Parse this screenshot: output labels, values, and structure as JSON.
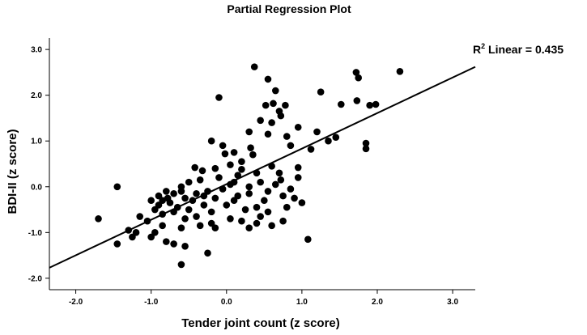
{
  "chart_data": {
    "type": "scatter",
    "title": "Partial Regression Plot",
    "xlabel": "Tender joint count (z score)",
    "ylabel": "BDI-II (z score)",
    "xlim": [
      -2.35,
      3.3
    ],
    "ylim": [
      -2.25,
      3.25
    ],
    "xticks": [
      -2.0,
      -1.0,
      0.0,
      1.0,
      2.0,
      3.0
    ],
    "xtick_labels": [
      "-2.0",
      "-1.0",
      "0.0",
      "1.0",
      "2.0",
      "3.0"
    ],
    "yticks": [
      -2.0,
      -1.0,
      0.0,
      1.0,
      2.0,
      3.0
    ],
    "ytick_labels": [
      "-2.0",
      "-1.0",
      "0.0",
      "1.0",
      "2.0",
      "3.0"
    ],
    "grid": false,
    "fit_line": {
      "label_prefix": "R",
      "label_sup": "2",
      "label_suffix": " Linear = 0.435",
      "x": [
        -2.35,
        3.3
      ],
      "y": [
        -1.77,
        2.62
      ]
    },
    "points": [
      [
        0.37,
        2.62
      ],
      [
        0.55,
        2.35
      ],
      [
        1.72,
        2.5
      ],
      [
        1.75,
        2.38
      ],
      [
        2.3,
        2.52
      ],
      [
        -0.1,
        1.95
      ],
      [
        0.65,
        2.1
      ],
      [
        1.25,
        2.07
      ],
      [
        0.62,
        1.82
      ],
      [
        0.52,
        1.78
      ],
      [
        0.78,
        1.78
      ],
      [
        0.7,
        1.65
      ],
      [
        1.52,
        1.8
      ],
      [
        1.73,
        1.88
      ],
      [
        1.9,
        1.78
      ],
      [
        1.98,
        1.8
      ],
      [
        0.45,
        1.45
      ],
      [
        0.6,
        1.4
      ],
      [
        0.72,
        1.55
      ],
      [
        0.95,
        1.3
      ],
      [
        0.8,
        1.1
      ],
      [
        1.2,
        1.2
      ],
      [
        0.3,
        1.2
      ],
      [
        0.55,
        1.15
      ],
      [
        1.35,
        1.0
      ],
      [
        1.45,
        1.08
      ],
      [
        1.85,
        0.95
      ],
      [
        1.85,
        0.83
      ],
      [
        1.12,
        0.82
      ],
      [
        0.85,
        0.9
      ],
      [
        0.32,
        0.85
      ],
      [
        0.35,
        0.7
      ],
      [
        0.2,
        0.55
      ],
      [
        0.1,
        0.75
      ],
      [
        -0.02,
        0.72
      ],
      [
        -0.05,
        0.9
      ],
      [
        -0.2,
        1.0
      ],
      [
        -0.42,
        0.42
      ],
      [
        -0.32,
        0.35
      ],
      [
        0.05,
        0.48
      ],
      [
        0.2,
        0.38
      ],
      [
        0.4,
        0.3
      ],
      [
        0.6,
        0.45
      ],
      [
        0.7,
        0.3
      ],
      [
        0.95,
        0.42
      ],
      [
        -0.5,
        0.1
      ],
      [
        -0.35,
        0.15
      ],
      [
        -0.1,
        0.2
      ],
      [
        0.1,
        0.1
      ],
      [
        0.3,
        0.0
      ],
      [
        0.45,
        0.1
      ],
      [
        0.72,
        0.15
      ],
      [
        0.95,
        0.2
      ],
      [
        -0.6,
        0.0
      ],
      [
        -0.8,
        -0.1
      ],
      [
        -0.9,
        -0.2
      ],
      [
        -1.0,
        -0.3
      ],
      [
        -0.75,
        -0.35
      ],
      [
        -0.55,
        -0.25
      ],
      [
        -0.4,
        -0.15
      ],
      [
        -0.25,
        -0.1
      ],
      [
        -0.05,
        -0.05
      ],
      [
        0.15,
        -0.2
      ],
      [
        0.3,
        -0.15
      ],
      [
        0.55,
        -0.1
      ],
      [
        0.75,
        -0.2
      ],
      [
        0.85,
        -0.05
      ],
      [
        1.0,
        -0.35
      ],
      [
        0.9,
        -0.25
      ],
      [
        -1.45,
        0.0
      ],
      [
        -1.7,
        -0.7
      ],
      [
        -1.45,
        -1.25
      ],
      [
        -1.3,
        -0.95
      ],
      [
        -1.25,
        -1.1
      ],
      [
        -1.15,
        -0.65
      ],
      [
        -1.05,
        -0.75
      ],
      [
        -0.95,
        -1.0
      ],
      [
        -0.85,
        -0.85
      ],
      [
        -0.7,
        -0.55
      ],
      [
        -0.55,
        -0.7
      ],
      [
        -0.4,
        -0.65
      ],
      [
        -0.2,
        -0.8
      ],
      [
        0.05,
        -0.7
      ],
      [
        0.2,
        -0.75
      ],
      [
        0.3,
        -0.9
      ],
      [
        0.45,
        -0.65
      ],
      [
        0.6,
        -0.85
      ],
      [
        0.75,
        -0.75
      ],
      [
        -1.0,
        -1.1
      ],
      [
        -0.8,
        -1.2
      ],
      [
        -0.7,
        -1.25
      ],
      [
        -0.55,
        -1.3
      ],
      [
        -0.6,
        -1.7
      ],
      [
        -0.25,
        -1.45
      ],
      [
        -0.15,
        -0.9
      ],
      [
        -0.95,
        -0.5
      ],
      [
        -0.9,
        -0.4
      ],
      [
        -0.85,
        -0.3
      ],
      [
        -0.78,
        -0.25
      ],
      [
        -0.7,
        -0.15
      ],
      [
        -0.65,
        -0.45
      ],
      [
        -0.5,
        -0.5
      ],
      [
        -0.45,
        -0.3
      ],
      [
        -0.3,
        -0.4
      ],
      [
        -0.2,
        -0.55
      ],
      [
        0.0,
        -0.4
      ],
      [
        0.1,
        -0.3
      ],
      [
        0.25,
        -0.5
      ],
      [
        0.4,
        -0.45
      ],
      [
        0.55,
        -0.55
      ],
      [
        1.08,
        -1.15
      ],
      [
        0.65,
        0.05
      ],
      [
        0.15,
        0.25
      ],
      [
        -0.15,
        0.4
      ],
      [
        -0.3,
        -0.2
      ],
      [
        -0.6,
        -0.1
      ],
      [
        -0.85,
        -0.6
      ],
      [
        0.5,
        -0.3
      ],
      [
        0.8,
        -0.45
      ],
      [
        -1.2,
        -1.0
      ],
      [
        -0.6,
        -0.9
      ],
      [
        -0.15,
        -0.25
      ],
      [
        0.05,
        0.05
      ],
      [
        0.4,
        -0.8
      ],
      [
        -0.35,
        -0.85
      ]
    ]
  }
}
